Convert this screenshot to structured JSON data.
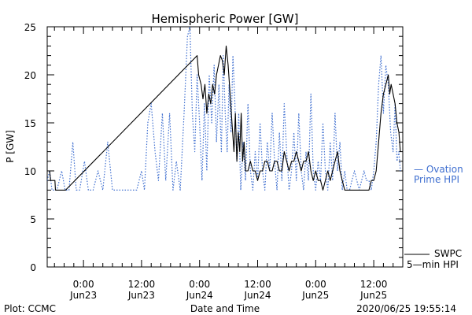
{
  "chart_data": {
    "type": "line",
    "title": "Hemispheric Power [GW]",
    "ylabel": "P [GW]",
    "xlabel": "Date and Time",
    "ylim": [
      0,
      25
    ],
    "y_ticks": [
      "0",
      "5",
      "10",
      "15",
      "20",
      "25"
    ],
    "x_unit": "hours since 2020-06-23 00:00 UT",
    "xlim": [
      -7.5,
      66
    ],
    "x_ticks": [
      {
        "x": 0,
        "time": "0:00",
        "date": "Jun23"
      },
      {
        "x": 12,
        "time": "12:00",
        "date": "Jun23"
      },
      {
        "x": 24,
        "time": "0:00",
        "date": "Jun24"
      },
      {
        "x": 36,
        "time": "12:00",
        "date": "Jun24"
      },
      {
        "x": 48,
        "time": "0:00",
        "date": "Jun25"
      },
      {
        "x": 60,
        "time": "12:00",
        "date": "Jun25"
      }
    ],
    "grid": false,
    "legend_position": "right",
    "series": [
      {
        "name": "SWPC 5-min HPI",
        "label_line1": "SWPC",
        "label_line2": "5—min HPI",
        "color": "#000000",
        "style": "solid",
        "points": [
          [
            -7.5,
            10
          ],
          [
            -7.0,
            10
          ],
          [
            -6.8,
            9
          ],
          [
            -5.9,
            9
          ],
          [
            -5.8,
            8
          ],
          [
            -3.7,
            8
          ],
          [
            23.5,
            22
          ],
          [
            23.8,
            20
          ],
          [
            24.3,
            19
          ],
          [
            24.7,
            17.5
          ],
          [
            25.1,
            19
          ],
          [
            25.5,
            16
          ],
          [
            25.9,
            18
          ],
          [
            26.3,
            17
          ],
          [
            26.7,
            19
          ],
          [
            27.1,
            18
          ],
          [
            27.5,
            20
          ],
          [
            27.9,
            21
          ],
          [
            28.3,
            22
          ],
          [
            28.7,
            21.5
          ],
          [
            29.1,
            20
          ],
          [
            29.5,
            23
          ],
          [
            29.9,
            21
          ],
          [
            30.3,
            18
          ],
          [
            30.7,
            15
          ],
          [
            31.1,
            12
          ],
          [
            31.4,
            16
          ],
          [
            31.7,
            11
          ],
          [
            32.0,
            14
          ],
          [
            32.3,
            12
          ],
          [
            32.6,
            16
          ],
          [
            32.9,
            11
          ],
          [
            33.2,
            13
          ],
          [
            33.5,
            10
          ],
          [
            34.0,
            10
          ],
          [
            34.5,
            11
          ],
          [
            35.0,
            10
          ],
          [
            35.5,
            10
          ],
          [
            36.0,
            9
          ],
          [
            36.5,
            10
          ],
          [
            37.0,
            10
          ],
          [
            37.5,
            11
          ],
          [
            38.0,
            11
          ],
          [
            38.5,
            10
          ],
          [
            39.0,
            10
          ],
          [
            39.5,
            11
          ],
          [
            40.0,
            11
          ],
          [
            40.5,
            10
          ],
          [
            41.0,
            10
          ],
          [
            41.5,
            12
          ],
          [
            42.0,
            11
          ],
          [
            42.5,
            10
          ],
          [
            43.0,
            11
          ],
          [
            43.5,
            11
          ],
          [
            44.0,
            12
          ],
          [
            44.5,
            11
          ],
          [
            45.0,
            10
          ],
          [
            45.5,
            11
          ],
          [
            46.0,
            11
          ],
          [
            46.5,
            12
          ],
          [
            47.0,
            10
          ],
          [
            47.5,
            9
          ],
          [
            48.0,
            10
          ],
          [
            48.5,
            9
          ],
          [
            49.0,
            9
          ],
          [
            49.5,
            8
          ],
          [
            50.0,
            9
          ],
          [
            50.5,
            10
          ],
          [
            51.0,
            9
          ],
          [
            51.5,
            10
          ],
          [
            52.0,
            11
          ],
          [
            52.5,
            12
          ],
          [
            53.0,
            10
          ],
          [
            53.5,
            9
          ],
          [
            54.0,
            8
          ],
          [
            55.0,
            8
          ],
          [
            56.0,
            8
          ],
          [
            57.0,
            8
          ],
          [
            58.0,
            8
          ],
          [
            59.0,
            8
          ],
          [
            59.5,
            9
          ],
          [
            60.0,
            9
          ],
          [
            60.5,
            10
          ],
          [
            61.0,
            13
          ],
          [
            61.5,
            16
          ],
          [
            62.0,
            18
          ],
          [
            62.5,
            19
          ],
          [
            63.0,
            20
          ],
          [
            63.3,
            18
          ],
          [
            63.6,
            19
          ],
          [
            64.0,
            18
          ],
          [
            64.4,
            17
          ],
          [
            64.8,
            15
          ],
          [
            65.2,
            14
          ],
          [
            65.5,
            12
          ]
        ]
      },
      {
        "name": "Ovation Prime HPI",
        "label_line1": "— Ovation",
        "label_line2": "Prime HPI",
        "color": "#3f6fd0",
        "style": "dotted",
        "points": [
          [
            -7.5,
            9
          ],
          [
            -7.0,
            10
          ],
          [
            -6.5,
            8
          ],
          [
            -5.5,
            8
          ],
          [
            -4.5,
            10
          ],
          [
            -3.8,
            8
          ],
          [
            -3.0,
            8
          ],
          [
            -2.2,
            13
          ],
          [
            -1.5,
            8
          ],
          [
            -0.8,
            8
          ],
          [
            0.2,
            11
          ],
          [
            1.0,
            8
          ],
          [
            2.0,
            8
          ],
          [
            3.0,
            10
          ],
          [
            4.0,
            8
          ],
          [
            5.0,
            13
          ],
          [
            6.0,
            8
          ],
          [
            7.0,
            8
          ],
          [
            8.0,
            8
          ],
          [
            9.0,
            8
          ],
          [
            10.0,
            8
          ],
          [
            11.0,
            8
          ],
          [
            12.0,
            10
          ],
          [
            12.6,
            8
          ],
          [
            13.3,
            15
          ],
          [
            14.0,
            17
          ],
          [
            14.8,
            12
          ],
          [
            15.5,
            9
          ],
          [
            16.3,
            16
          ],
          [
            17.0,
            9
          ],
          [
            17.8,
            16
          ],
          [
            18.5,
            8
          ],
          [
            19.2,
            11
          ],
          [
            20.0,
            8
          ],
          [
            20.8,
            16
          ],
          [
            21.5,
            24
          ],
          [
            22.0,
            25
          ],
          [
            22.5,
            16
          ],
          [
            23.0,
            12
          ],
          [
            23.5,
            20
          ],
          [
            24.0,
            15
          ],
          [
            24.5,
            9
          ],
          [
            25.0,
            17
          ],
          [
            25.5,
            10
          ],
          [
            26.0,
            20
          ],
          [
            26.5,
            15
          ],
          [
            27.0,
            21
          ],
          [
            27.5,
            13
          ],
          [
            28.0,
            19
          ],
          [
            28.5,
            12
          ],
          [
            28.9,
            22
          ],
          [
            29.3,
            16
          ],
          [
            29.7,
            12
          ],
          [
            30.1,
            19
          ],
          [
            30.5,
            14
          ],
          [
            30.9,
            22
          ],
          [
            31.3,
            17
          ],
          [
            31.7,
            11
          ],
          [
            32.1,
            16
          ],
          [
            32.5,
            8
          ],
          [
            33.0,
            13
          ],
          [
            33.5,
            9
          ],
          [
            34.0,
            17
          ],
          [
            34.5,
            10
          ],
          [
            35.0,
            8
          ],
          [
            35.5,
            12
          ],
          [
            36.0,
            9
          ],
          [
            36.5,
            15
          ],
          [
            37.0,
            10
          ],
          [
            37.5,
            8
          ],
          [
            38.0,
            13
          ],
          [
            38.5,
            10
          ],
          [
            39.0,
            16
          ],
          [
            39.5,
            11
          ],
          [
            40.0,
            8
          ],
          [
            40.5,
            14
          ],
          [
            41.0,
            9
          ],
          [
            41.5,
            17
          ],
          [
            42.0,
            12
          ],
          [
            42.5,
            8
          ],
          [
            43.0,
            10
          ],
          [
            43.5,
            14
          ],
          [
            44.0,
            9
          ],
          [
            44.5,
            16
          ],
          [
            45.0,
            10
          ],
          [
            45.5,
            8
          ],
          [
            46.0,
            12
          ],
          [
            46.5,
            9
          ],
          [
            47.0,
            18
          ],
          [
            47.5,
            10
          ],
          [
            48.0,
            8
          ],
          [
            48.5,
            11
          ],
          [
            49.0,
            9
          ],
          [
            49.5,
            15
          ],
          [
            50.0,
            10
          ],
          [
            50.5,
            8
          ],
          [
            51.0,
            13
          ],
          [
            51.5,
            9
          ],
          [
            52.0,
            16
          ],
          [
            52.5,
            10
          ],
          [
            53.0,
            13
          ],
          [
            53.5,
            8
          ],
          [
            54.0,
            10
          ],
          [
            54.5,
            8
          ],
          [
            55.0,
            8
          ],
          [
            55.5,
            9
          ],
          [
            56.0,
            10
          ],
          [
            56.5,
            9
          ],
          [
            57.0,
            8
          ],
          [
            57.5,
            9
          ],
          [
            58.0,
            10
          ],
          [
            58.5,
            9
          ],
          [
            59.0,
            9
          ],
          [
            59.5,
            8
          ],
          [
            60.0,
            10
          ],
          [
            60.5,
            13
          ],
          [
            61.0,
            19
          ],
          [
            61.5,
            22
          ],
          [
            62.0,
            16
          ],
          [
            62.5,
            21
          ],
          [
            63.0,
            19
          ],
          [
            63.5,
            14
          ],
          [
            64.0,
            12
          ],
          [
            64.4,
            17
          ],
          [
            64.8,
            11
          ],
          [
            65.2,
            12
          ],
          [
            65.5,
            10
          ]
        ]
      }
    ]
  },
  "footer": {
    "plot_credit": "Plot: CCMC",
    "timestamp": "2020/06/25 19:55:14"
  }
}
